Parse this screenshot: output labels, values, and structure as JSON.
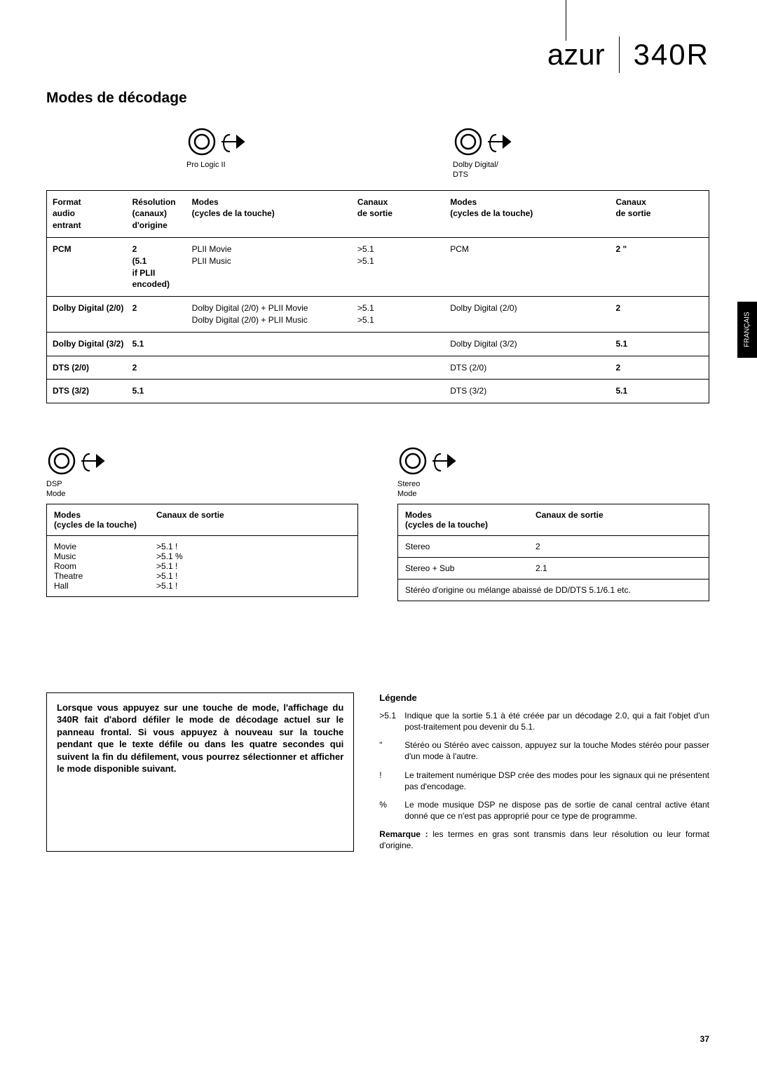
{
  "header": {
    "brand": "azur",
    "model": "340R"
  },
  "side_tab": "FRANÇAIS",
  "page_title": "Modes de décodage",
  "page_number": "37",
  "knob_labels": {
    "pl2": "Pro Logic II",
    "dd": "Dolby Digital/\nDTS",
    "dsp": "DSP\nMode",
    "stereo": "Stereo\nMode"
  },
  "main_table": {
    "columns": [
      "Format\naudio\nentrant",
      "Résolution\n(canaux)\nd'origine",
      "Modes\n(cycles de la touche)",
      "Canaux\nde sortie",
      "Modes\n(cycles de la touche)",
      "Canaux\nde sortie"
    ],
    "rows": [
      {
        "c0": "PCM",
        "c0_bold": true,
        "c1": "2\n(5.1\nif PLII\nencoded)",
        "c1_bold": true,
        "c2": "PLII Movie\nPLII Music",
        "c3": ">5.1\n>5.1",
        "c4": "PCM",
        "c5": "2 \"",
        "c5_bold": true
      },
      {
        "c0": "Dolby Digital (2/0)",
        "c0_bold": true,
        "c1": "2",
        "c1_bold": true,
        "c2": "Dolby Digital (2/0) + PLII Movie\nDolby Digital (2/0) + PLII Music",
        "c3": ">5.1\n>5.1",
        "c4": "Dolby Digital (2/0)",
        "c5": "2",
        "c5_bold": true
      },
      {
        "c0": "Dolby Digital (3/2)",
        "c0_bold": true,
        "c1": "5.1",
        "c1_bold": true,
        "c2": "",
        "c3": "",
        "c4": "Dolby Digital (3/2)",
        "c5": "5.1",
        "c5_bold": true
      },
      {
        "c0": "DTS (2/0)",
        "c0_bold": true,
        "c1": "2",
        "c1_bold": true,
        "c2": "",
        "c3": "",
        "c4": "DTS (2/0)",
        "c5": "2",
        "c5_bold": true
      },
      {
        "c0": "DTS (3/2)",
        "c0_bold": true,
        "c1": "5.1",
        "c1_bold": true,
        "c2": "",
        "c3": "",
        "c4": "DTS (3/2)",
        "c5": "5.1",
        "c5_bold": true
      }
    ]
  },
  "dsp_table": {
    "columns": [
      "Modes\n(cycles de la touche)",
      "Canaux de sortie"
    ],
    "rows": [
      [
        "Movie",
        ">5.1 !"
      ],
      [
        "Music",
        ">5.1 %"
      ],
      [
        "Room",
        ">5.1 !"
      ],
      [
        "Theatre",
        ">5.1 !"
      ],
      [
        "Hall",
        ">5.1 !"
      ]
    ]
  },
  "stereo_table": {
    "columns": [
      "Modes\n(cycles de la touche)",
      "Canaux de sortie"
    ],
    "rows": [
      [
        "Stereo",
        "2"
      ],
      [
        "Stereo + Sub",
        "2.1"
      ]
    ],
    "footnote": "Stéréo d'origine ou mélange abaissé de DD/DTS 5.1/6.1 etc."
  },
  "note_box": "Lorsque vous appuyez sur une touche de mode, l'affichage du 340R fait d'abord défiler le mode de décodage actuel sur le panneau frontal. Si vous appuyez à nouveau sur la touche pendant que le texte défile ou dans les quatre secondes qui suivent la fin du défilement, vous pourrez sélectionner et afficher le mode disponible suivant.",
  "legend": {
    "title": "Légende",
    "items": [
      {
        "sym": ">5.1",
        "text": "Indique que la sortie 5.1 à été créée par un décodage 2.0, qui a fait l'objet d'un post-traitement pou devenir du 5.1."
      },
      {
        "sym": "\"",
        "text": "Stéréo ou Stéréo avec caisson, appuyez sur la touche Modes stéréo pour passer d'un mode à l'autre."
      },
      {
        "sym": "!",
        "text": "Le traitement numérique DSP crée des modes pour les signaux qui ne présentent pas d'encodage."
      },
      {
        "sym": "%",
        "text": "Le mode musique DSP ne dispose pas de sortie de canal central active étant donné que ce n'est pas approprié pour ce type de programme."
      }
    ],
    "remark_label": "Remarque : ",
    "remark": "les termes en gras sont transmis dans leur résolution ou leur format d'origine."
  }
}
